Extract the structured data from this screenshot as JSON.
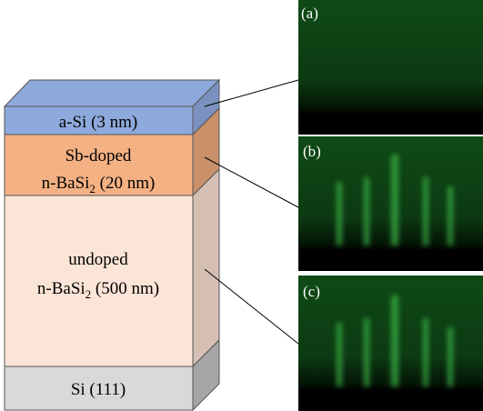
{
  "layers": [
    {
      "label": [
        {
          "text": "a-Si (3 nm)"
        }
      ]
    },
    {
      "label": [
        {
          "text": "Sb-doped"
        },
        {
          "prefix": "n-BaSi",
          "sub": "2",
          "suffix": " (20 nm)"
        }
      ]
    },
    {
      "label": [
        {
          "text": "undoped"
        },
        {
          "prefix": "n-BaSi",
          "sub": "2",
          "suffix": " (500 nm)"
        }
      ]
    },
    {
      "label": [
        {
          "text": "Si (111)"
        }
      ]
    }
  ],
  "panels": [
    {
      "label": "(a)"
    },
    {
      "label": "(b)"
    },
    {
      "label": "(c)"
    }
  ]
}
